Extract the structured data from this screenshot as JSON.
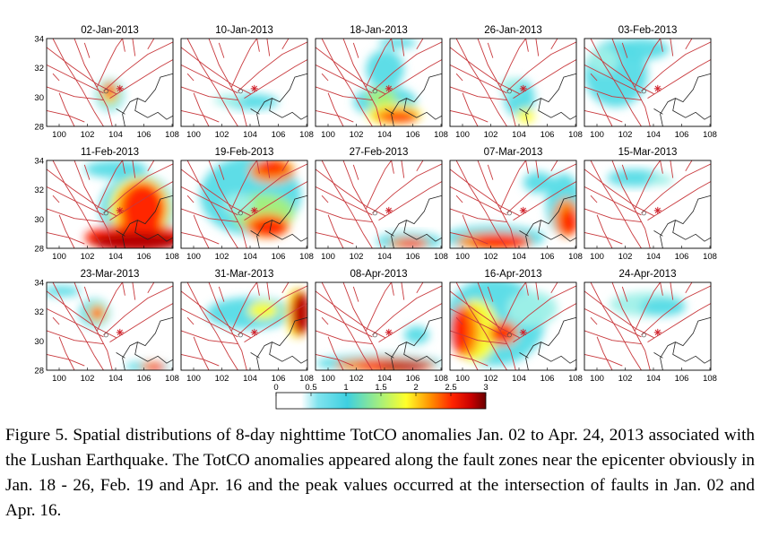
{
  "figure": {
    "panels": [
      {
        "date": "02-Jan-2013",
        "row_ticks": [
          "34",
          "32",
          "30",
          "28"
        ]
      },
      {
        "date": "10-Jan-2013"
      },
      {
        "date": "18-Jan-2013"
      },
      {
        "date": "26-Jan-2013"
      },
      {
        "date": "03-Feb-2013"
      },
      {
        "date": "11-Feb-2013",
        "row_ticks": [
          "34",
          "32",
          "30",
          "28"
        ]
      },
      {
        "date": "19-Feb-2013"
      },
      {
        "date": "27-Feb-2013"
      },
      {
        "date": "07-Mar-2013"
      },
      {
        "date": "15-Mar-2013"
      },
      {
        "date": "23-Mar-2013",
        "row_ticks": [
          "34",
          "32",
          "30",
          "28"
        ]
      },
      {
        "date": "31-Mar-2013"
      },
      {
        "date": "08-Apr-2013"
      },
      {
        "date": "16-Apr-2013"
      },
      {
        "date": "24-Apr-2013"
      }
    ],
    "x_ticks": [
      "100",
      "102",
      "104",
      "106",
      "108"
    ],
    "colorbar": {
      "ticks": [
        "0",
        "0.5",
        "1",
        "1.5",
        "2",
        "2.5",
        "3"
      ],
      "colors": [
        "#ffffff",
        "#e8f8fa",
        "#5cdde6",
        "#9ff0b0",
        "#ffff3a",
        "#ff9a00",
        "#ff3000",
        "#c00000",
        "#6a0000"
      ]
    },
    "fault_color": "#c8383c",
    "epicenter_color": "#d0202a"
  },
  "caption": "Figure 5. Spatial distributions of 8-day nighttime TotCO anomalies Jan. 02 to Apr. 24, 2013 associated with the Lushan Earthquake. The TotCO anomalies appeared along the fault zones near the epicenter obviously in Jan. 18 - 26, Feb. 19 and Apr. 16 and the peak values occurred at the intersection of faults in Jan. 02 and Apr. 16."
}
